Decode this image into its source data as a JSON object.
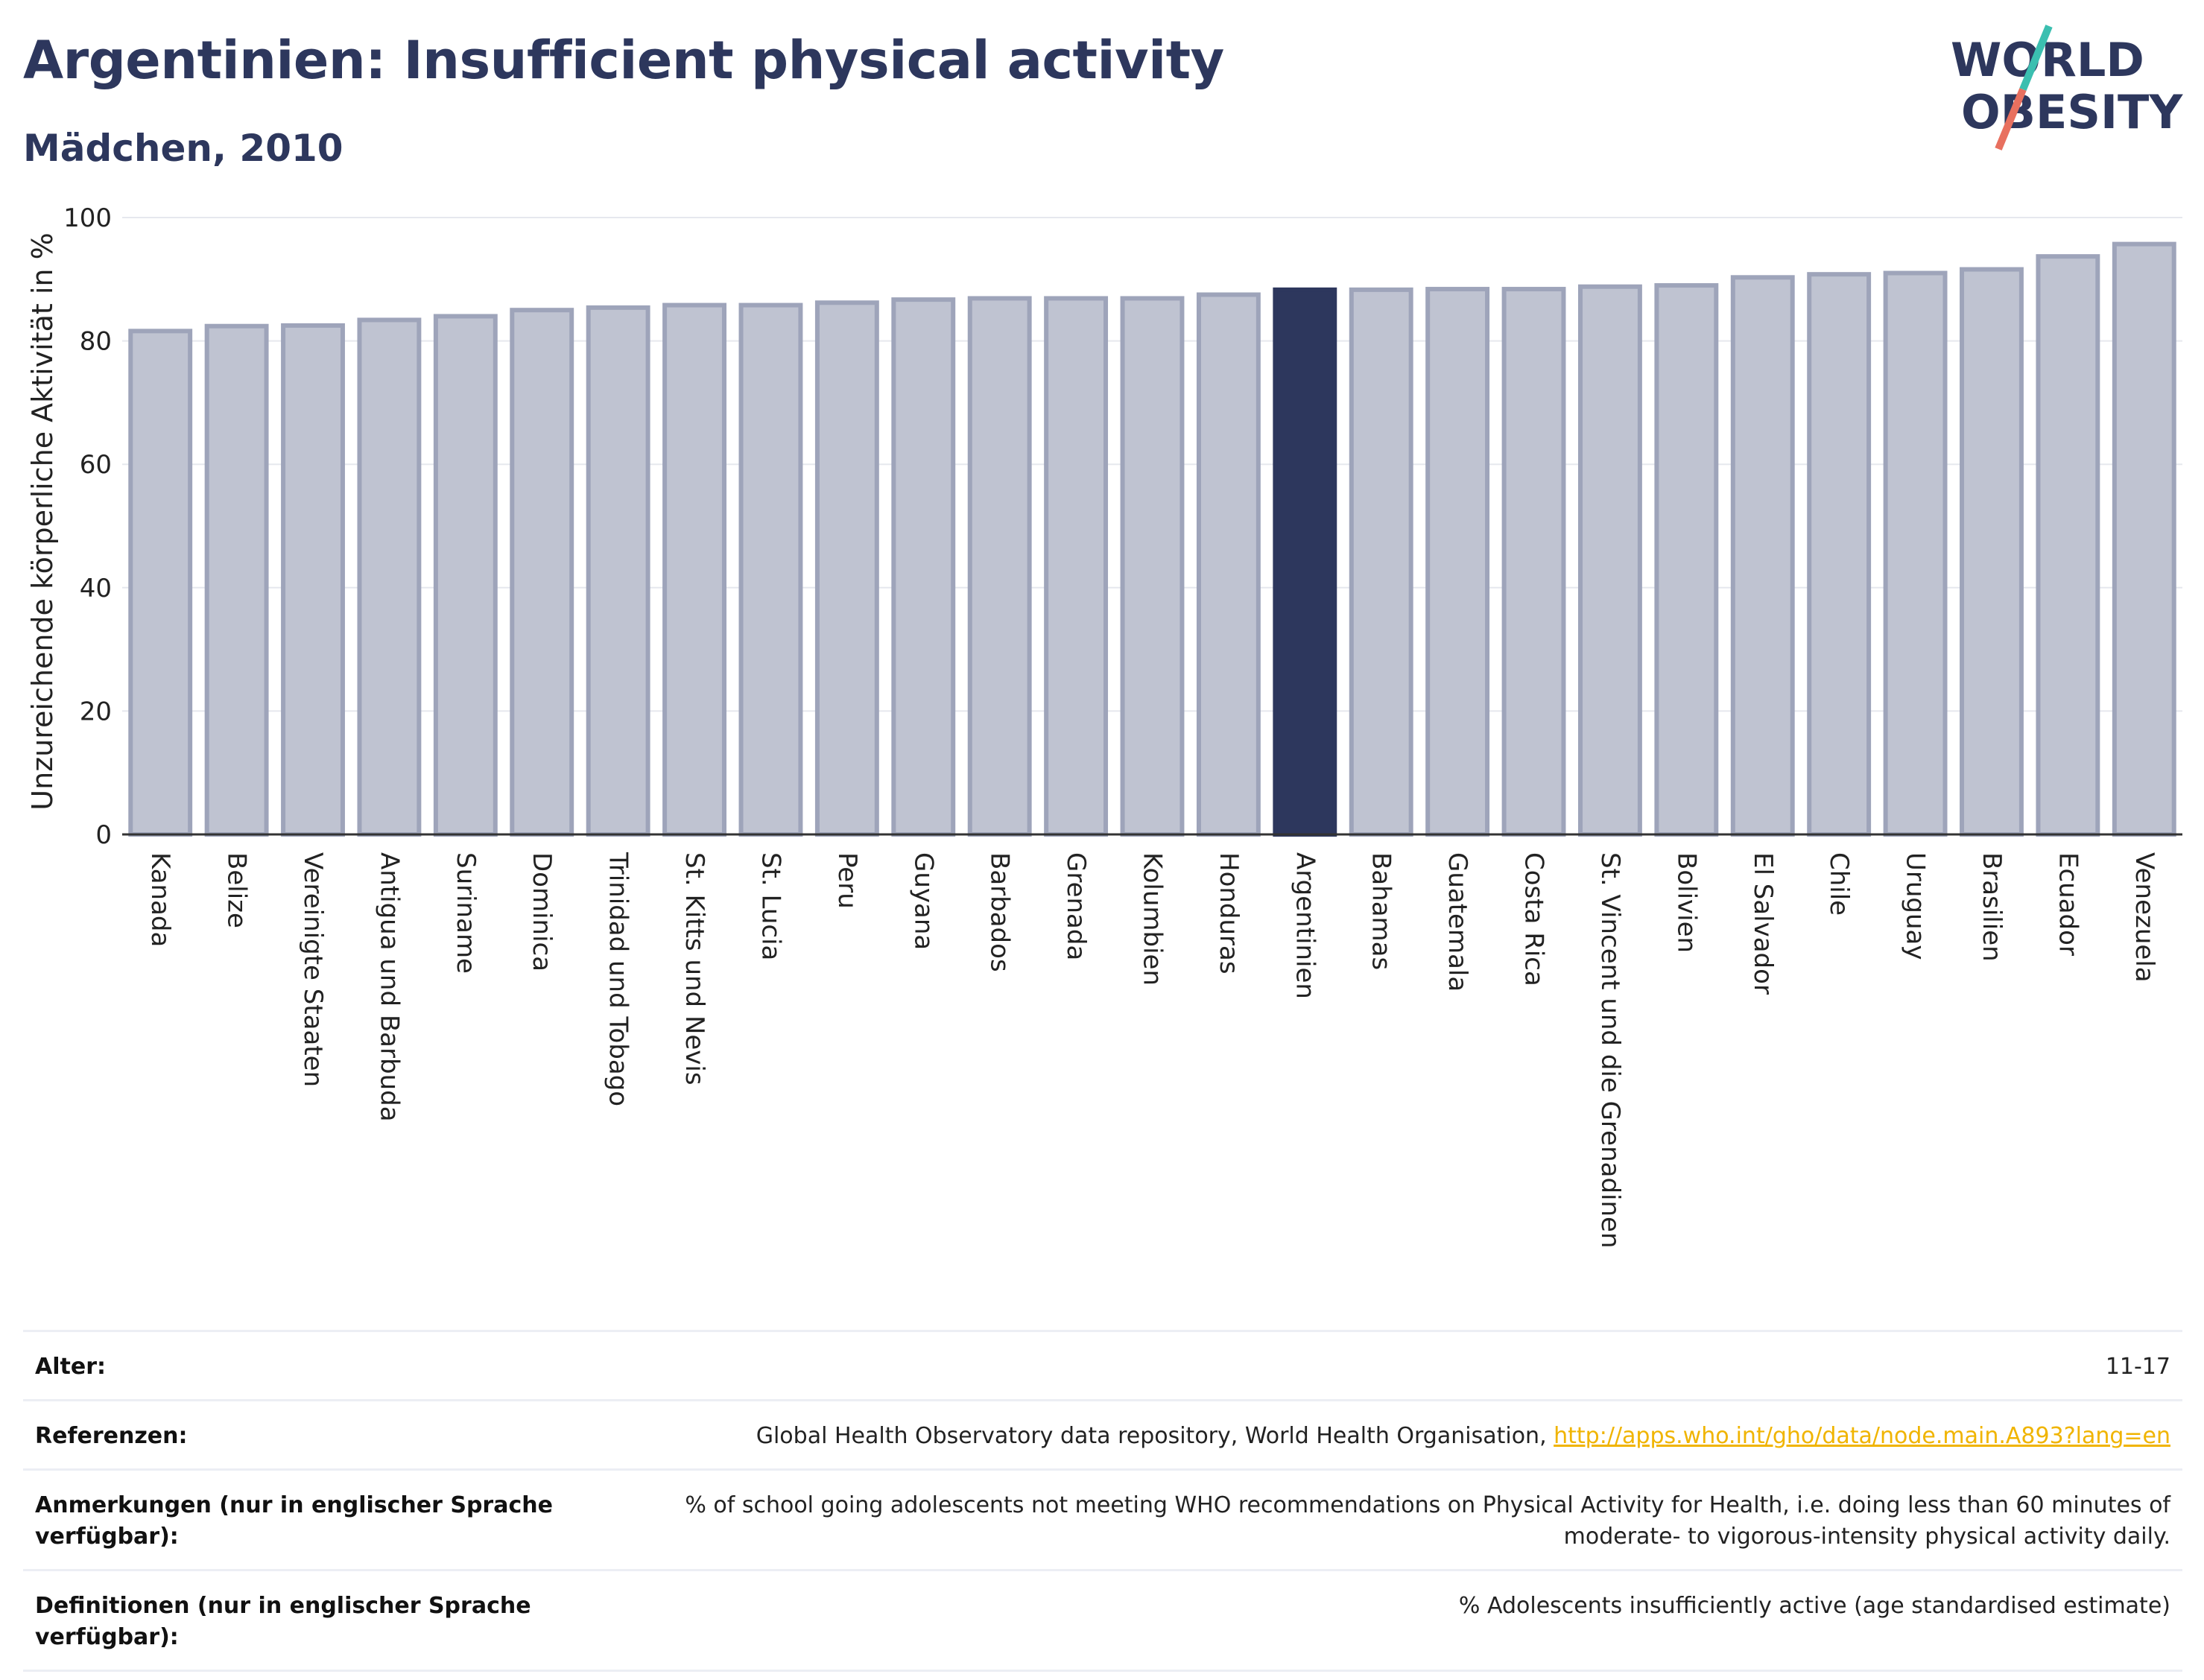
{
  "header": {
    "title": "Argentinien: Insufficient physical activity",
    "subtitle": "Mädchen, 2010"
  },
  "logo": {
    "line1": "WORLD",
    "line2": "OBESITY",
    "colors": {
      "text": "#2d375d",
      "slash_teal": "#3bbfb0",
      "slash_coral": "#e8705f"
    }
  },
  "colors": {
    "bar": "#bfc3d1",
    "bar_border": "#9ea4ba",
    "highlight": "#2d375d",
    "grid": "#e6e8ee",
    "axis": "#333333"
  },
  "chart_data": {
    "type": "bar",
    "title": "Argentinien: Insufficient physical activity",
    "subtitle": "Mädchen, 2010",
    "ylabel": "Unzureichende körperliche Aktivität in %",
    "xlabel": "",
    "ylim": [
      0,
      100
    ],
    "yticks": [
      0,
      20,
      40,
      60,
      80,
      100
    ],
    "grid": true,
    "highlight": "Argentinien",
    "categories": [
      "Kanada",
      "Belize",
      "Vereinigte Staaten",
      "Antigua und Barbuda",
      "Suriname",
      "Dominica",
      "Trinidad und Tobago",
      "St. Kitts und Nevis",
      "St. Lucia",
      "Peru",
      "Guyana",
      "Barbados",
      "Grenada",
      "Kolumbien",
      "Honduras",
      "Argentinien",
      "Bahamas",
      "Guatemala",
      "Costa Rica",
      "St. Vincent und die Grenadinen",
      "Bolivien",
      "El Salvador",
      "Chile",
      "Uruguay",
      "Brasilien",
      "Ecuador",
      "Venezuela"
    ],
    "values": [
      81.6,
      82.4,
      82.5,
      83.4,
      84.0,
      85.0,
      85.4,
      85.8,
      85.8,
      86.2,
      86.7,
      86.9,
      86.9,
      86.9,
      87.5,
      88.3,
      88.3,
      88.4,
      88.4,
      88.8,
      89.0,
      90.3,
      90.8,
      91.0,
      91.6,
      93.7,
      95.7
    ]
  },
  "meta": {
    "rows": [
      {
        "key": "Alter:",
        "value": "11-17"
      },
      {
        "key": "Referenzen:",
        "value": "Global Health Observatory data repository, World Health Organisation, ",
        "link": "http://apps.who.int/gho/data/node.main.A893?lang=en"
      },
      {
        "key": "Anmerkungen (nur in englischer Sprache verfügbar):",
        "value": "% of school going adolescents not meeting WHO recommendations on Physical Activity for Health, i.e. doing less than 60 minutes of moderate- to vigorous-intensity physical activity daily."
      },
      {
        "key": "Definitionen (nur in englischer Sprache verfügbar):",
        "value": "% Adolescents insufficiently active (age standardised estimate)"
      }
    ]
  }
}
